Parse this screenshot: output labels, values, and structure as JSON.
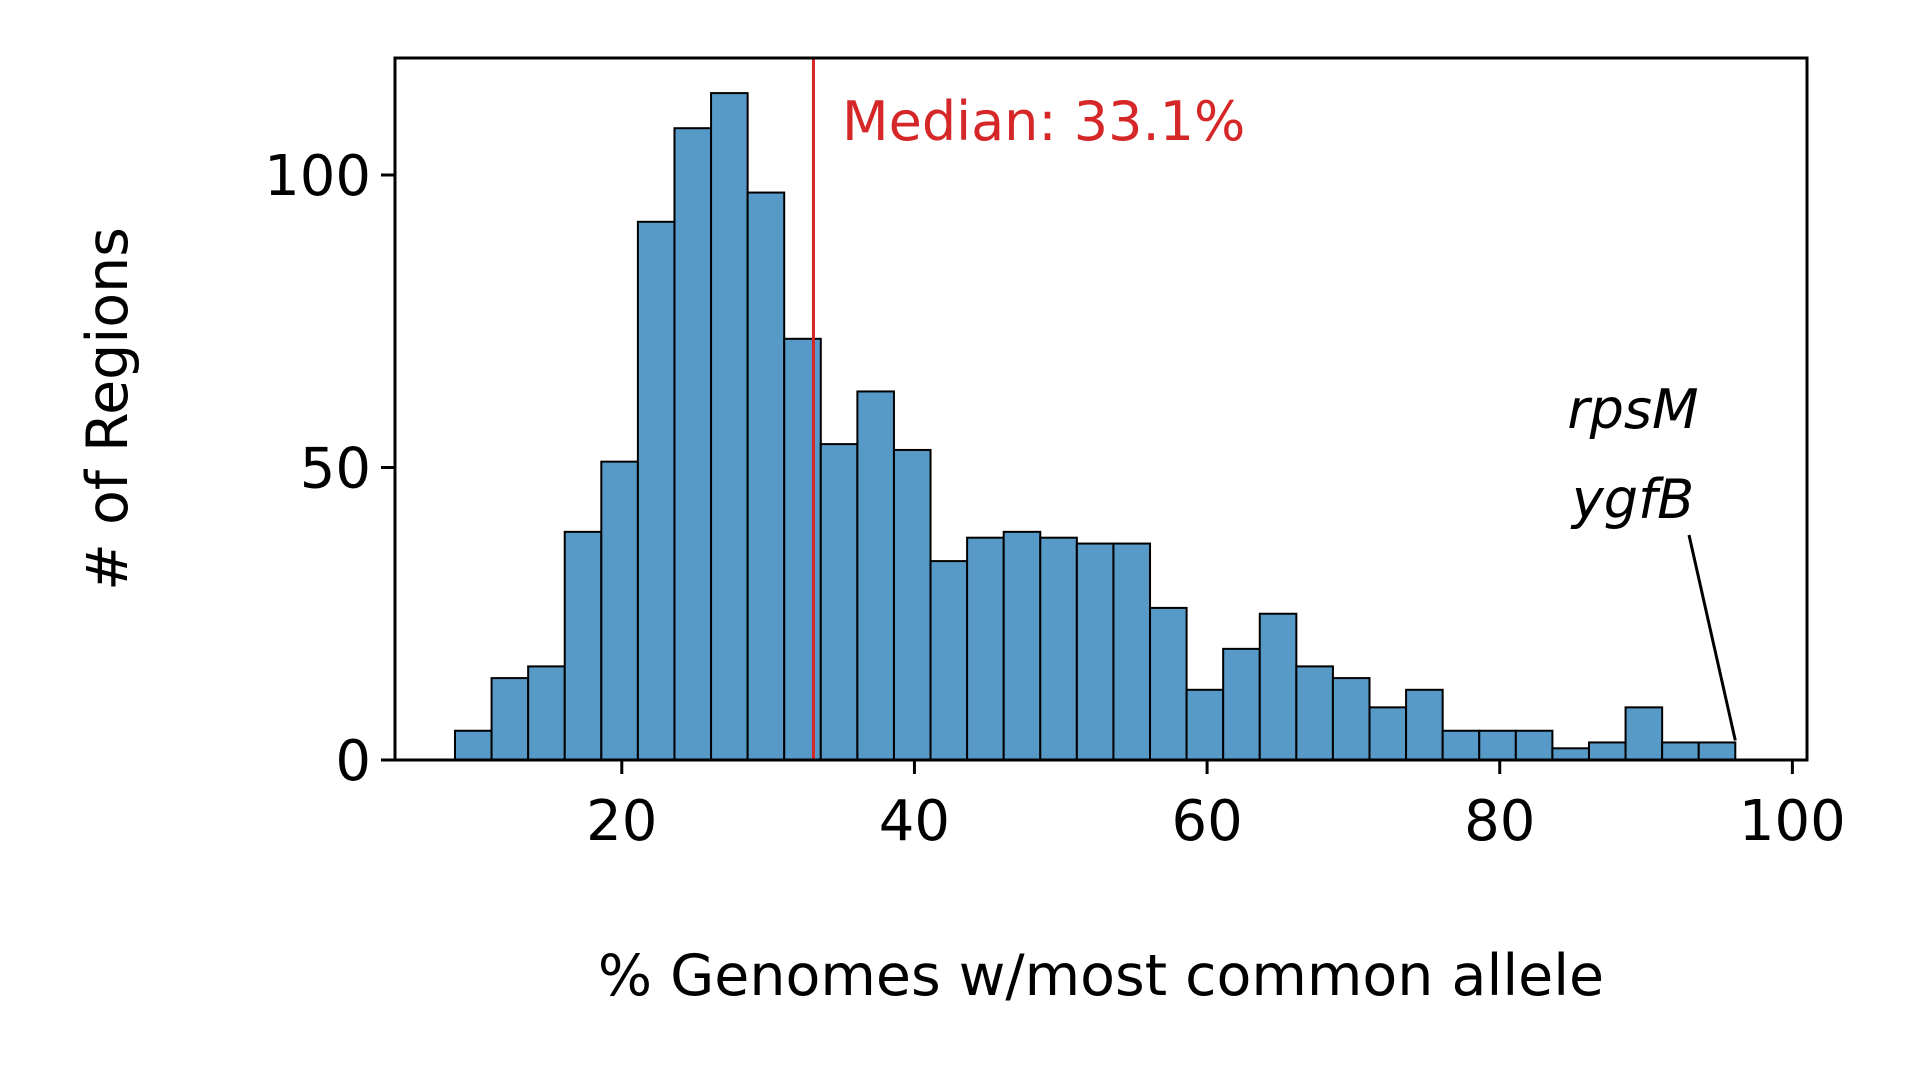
{
  "chart_data": {
    "type": "bar",
    "title": "",
    "xlabel": "% Genomes w/most common allele",
    "ylabel": "# of Regions",
    "xlim": [
      4.5,
      101
    ],
    "ylim": [
      0,
      120
    ],
    "grid": false,
    "bin_width": 2.5,
    "bins": [
      {
        "x0": 8.6,
        "count": 5
      },
      {
        "x0": 11.1,
        "count": 14
      },
      {
        "x0": 13.6,
        "count": 16
      },
      {
        "x0": 16.1,
        "count": 39
      },
      {
        "x0": 18.6,
        "count": 51
      },
      {
        "x0": 21.1,
        "count": 92
      },
      {
        "x0": 23.6,
        "count": 108
      },
      {
        "x0": 26.1,
        "count": 114
      },
      {
        "x0": 28.6,
        "count": 97
      },
      {
        "x0": 31.1,
        "count": 72
      },
      {
        "x0": 33.6,
        "count": 54
      },
      {
        "x0": 36.1,
        "count": 63
      },
      {
        "x0": 38.6,
        "count": 53
      },
      {
        "x0": 41.1,
        "count": 34
      },
      {
        "x0": 43.6,
        "count": 38
      },
      {
        "x0": 46.1,
        "count": 39
      },
      {
        "x0": 48.6,
        "count": 38
      },
      {
        "x0": 51.1,
        "count": 37
      },
      {
        "x0": 53.6,
        "count": 37
      },
      {
        "x0": 56.1,
        "count": 26
      },
      {
        "x0": 58.6,
        "count": 12
      },
      {
        "x0": 61.1,
        "count": 19
      },
      {
        "x0": 63.6,
        "count": 25
      },
      {
        "x0": 66.1,
        "count": 16
      },
      {
        "x0": 68.6,
        "count": 14
      },
      {
        "x0": 71.1,
        "count": 9
      },
      {
        "x0": 73.6,
        "count": 12
      },
      {
        "x0": 76.1,
        "count": 5
      },
      {
        "x0": 78.6,
        "count": 5
      },
      {
        "x0": 81.1,
        "count": 5
      },
      {
        "x0": 83.6,
        "count": 2
      },
      {
        "x0": 86.1,
        "count": 3
      },
      {
        "x0": 88.6,
        "count": 9
      },
      {
        "x0": 91.1,
        "count": 3
      },
      {
        "x0": 93.6,
        "count": 3
      }
    ],
    "x_ticks": [
      20,
      40,
      60,
      80,
      100
    ],
    "y_ticks": [
      0,
      50,
      100
    ],
    "median": {
      "value": 33.1,
      "label": "Median: 33.1%",
      "color": "#d62728"
    },
    "annotation": {
      "lines": [
        "rpsM",
        "ygfB"
      ],
      "point_x": 96.1,
      "point_y": 3
    },
    "bar_color": "#5799c7"
  }
}
